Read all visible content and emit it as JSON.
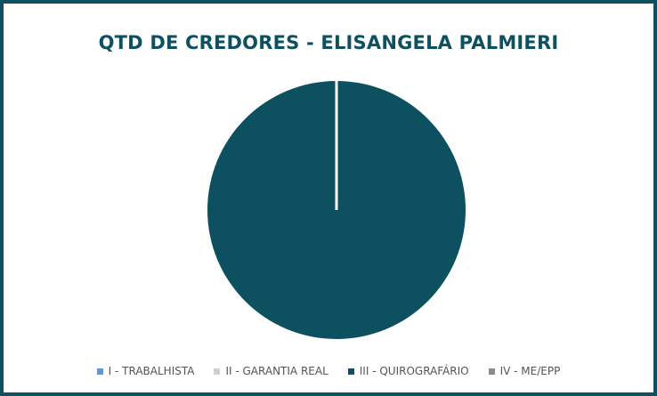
{
  "chart_data": {
    "type": "pie",
    "title": "QTD DE CREDORES - ELISANGELA PALMIERI",
    "categories": [
      "I - TRABALHISTA",
      "II - GARANTIA REAL",
      "III - QUIROGRAFÁRIO",
      "IV - ME/EPP"
    ],
    "values": [
      0,
      0,
      100,
      0
    ],
    "colors": [
      "#5b9bd5",
      "#cfcfcf",
      "#0d5161",
      "#8a8a8a"
    ],
    "legend_position": "bottom"
  },
  "style": {
    "title_color": "#0d5161",
    "border_color": "#0d5161"
  }
}
